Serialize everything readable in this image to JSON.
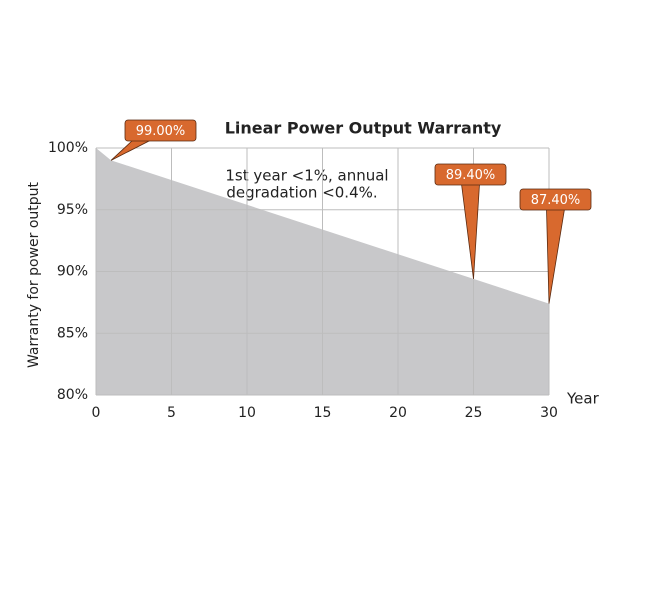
{
  "chart_data": {
    "type": "area",
    "title": "Linear Power Output Warranty",
    "x": [
      0,
      1,
      25,
      30
    ],
    "values": [
      100,
      99,
      89.4,
      87.4
    ],
    "value_labels": [
      null,
      "99.00%",
      "89.40%",
      "87.40%"
    ],
    "color": "#c8c8ca",
    "callout_color": "#d8692e",
    "xlim": [
      0,
      30
    ],
    "xticks": [
      0,
      5,
      10,
      15,
      20,
      25,
      30
    ],
    "ylim": [
      80,
      100
    ],
    "yticks": [
      {
        "value": 80,
        "label": "80%"
      },
      {
        "value": 85,
        "label": "85%"
      },
      {
        "value": 90,
        "label": "90%"
      },
      {
        "value": 95,
        "label": "95%"
      },
      {
        "value": 100,
        "label": "100%"
      }
    ],
    "xlabel": "Year",
    "ylabel": "Warranty for power output",
    "annotation": [
      "1st year <1%, annual",
      "degradation <0.4%."
    ],
    "grid": true
  }
}
